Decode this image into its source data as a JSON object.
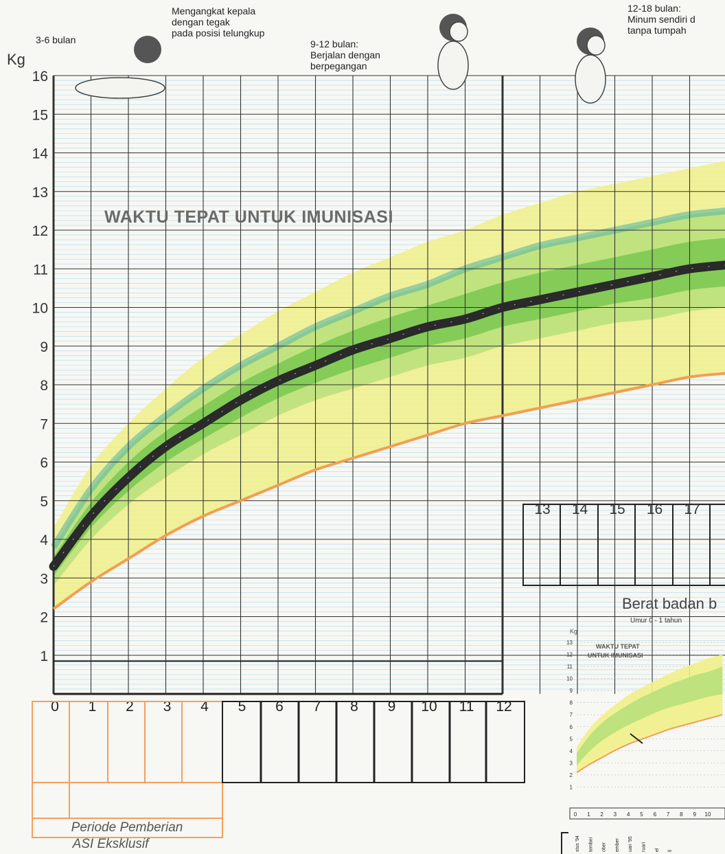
{
  "milestones": {
    "m1": "3-6 bulan",
    "m2": "Mengangkat kepala\ndengan tegak\npada posisi telungkup",
    "m3": "9-12 bulan:\nBerjalan dengan\nberpegangan",
    "m4": "12-18 bulan:\nMinum sendiri d\ntanpa tumpah"
  },
  "labels": {
    "y_unit": "Kg",
    "chart_title": "WAKTU TEPAT UNTUK IMUNISASI",
    "asi_line1": "Periode Pemberian",
    "asi_line2": "ASI Eksklusif",
    "berat": "Berat badan b",
    "umur": "Umur 0 - 1 tahun",
    "mini_unit": "Kg",
    "mini_title1": "WAKTU TEPAT",
    "mini_title2": "UNTUK IMUNISASI"
  },
  "month_labels_row2": [
    "13",
    "14",
    "15",
    "16",
    "17"
  ],
  "mini_months_text": [
    "stus '94",
    "tember",
    "ober",
    "ember",
    "uari '95",
    "ruari",
    "el",
    "ll"
  ],
  "colors": {
    "yellow_band": "#f0f08a",
    "light_green_band": "#b8e07a",
    "green_band": "#6fc44a",
    "teal_band": "#5fb8a0",
    "median_line": "#2a2a2a",
    "bottom_line": "#f0a050",
    "grid": "#333333",
    "minor_grid": "#8ecfe6",
    "asi_border": "#f0a060"
  },
  "chart_data": {
    "type": "line",
    "title": "WAKTU TEPAT UNTUK IMUNISASI",
    "ylabel": "Kg",
    "xlabel": "",
    "x": [
      0,
      1,
      2,
      3,
      4,
      5,
      6,
      7,
      8,
      9,
      10,
      11,
      12,
      13,
      14,
      15,
      16,
      17,
      18
    ],
    "ylim": [
      0,
      16
    ],
    "xlim": [
      0,
      18
    ],
    "yticks": [
      1,
      2,
      3,
      4,
      5,
      6,
      7,
      8,
      9,
      10,
      11,
      12,
      13,
      14,
      15,
      16
    ],
    "xticks": [
      0,
      1,
      2,
      3,
      4,
      5,
      6,
      7,
      8,
      9,
      10,
      11,
      12
    ],
    "series": [
      {
        "values": [
          4.3,
          5.9,
          7.0,
          7.9,
          8.7,
          9.3,
          9.9,
          10.4,
          10.9,
          11.3,
          11.7,
          12.0,
          12.4,
          12.7,
          13.0,
          13.2,
          13.4,
          13.6,
          13.8
        ]
      },
      {
        "values": [
          3.8,
          5.3,
          6.4,
          7.2,
          7.9,
          8.5,
          9.0,
          9.5,
          9.9,
          10.3,
          10.6,
          11.0,
          11.3,
          11.6,
          11.8,
          12.0,
          12.2,
          12.4,
          12.5
        ]
      },
      {
        "values": [
          3.3,
          4.6,
          5.6,
          6.4,
          7.0,
          7.6,
          8.1,
          8.5,
          8.9,
          9.2,
          9.5,
          9.7,
          10.0,
          10.2,
          10.4,
          10.6,
          10.8,
          11.0,
          11.1
        ]
      },
      {
        "values": [
          2.8,
          4.0,
          4.9,
          5.6,
          6.2,
          6.7,
          7.2,
          7.6,
          7.9,
          8.2,
          8.5,
          8.7,
          9.0,
          9.2,
          9.4,
          9.6,
          9.7,
          9.9,
          10.0
        ]
      },
      {
        "values": [
          2.2,
          2.9,
          3.5,
          4.1,
          4.6,
          5.0,
          5.4,
          5.8,
          6.1,
          6.4,
          6.7,
          7.0,
          7.2,
          7.4,
          7.6,
          7.8,
          8.0,
          8.2,
          8.3
        ]
      }
    ]
  }
}
